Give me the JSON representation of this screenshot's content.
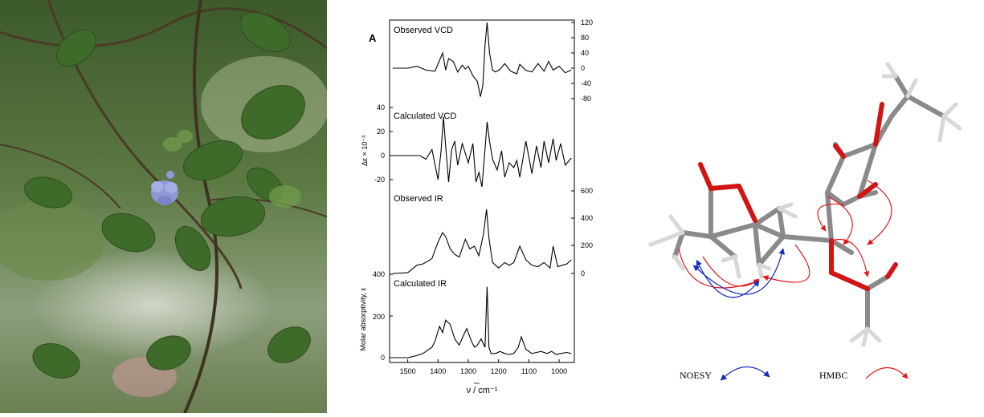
{
  "figure": {
    "panel_label": "A"
  },
  "photo": {
    "subject": "Flowering plant with blue flower and hairy green leaves"
  },
  "spectra": {
    "x_axis": {
      "label": "ν / cm⁻¹",
      "ticks": [
        "1500",
        "1400",
        "1300",
        "1200",
        "1100",
        "1000"
      ]
    },
    "y_axis_left_vcd": {
      "label": "Δε × 10⁻³",
      "ticks": [
        "40",
        "20",
        "0",
        "-20"
      ]
    },
    "y_axis_left_ir": {
      "label": "Molar absorptivity, ε",
      "ticks": [
        "400",
        "200",
        "0"
      ]
    },
    "y_axis_right_vcd": {
      "ticks": [
        "120",
        "80",
        "40",
        "0",
        "-40",
        "-80"
      ]
    },
    "y_axis_right_ir": {
      "ticks": [
        "600",
        "400",
        "200",
        "0"
      ]
    },
    "traces": [
      {
        "label": "Observed VCD"
      },
      {
        "label": "Calculated VCD"
      },
      {
        "label": "Observed IR"
      },
      {
        "label": "Calculated IR"
      }
    ]
  },
  "chart_data": {
    "type": "line",
    "xlabel": "ν / cm⁻¹",
    "xlim": [
      1560,
      950
    ],
    "x_reversed": true,
    "series": [
      {
        "name": "Observed VCD",
        "x": [
          1550,
          1500,
          1470,
          1440,
          1410,
          1385,
          1375,
          1365,
          1350,
          1335,
          1320,
          1310,
          1300,
          1285,
          1270,
          1260,
          1252,
          1245,
          1238,
          1230,
          1220,
          1210,
          1195,
          1180,
          1160,
          1140,
          1130,
          1110,
          1090,
          1070,
          1050,
          1035,
          1020,
          1000,
          980,
          960
        ],
        "y": [
          0,
          0,
          5,
          -5,
          -8,
          40,
          -5,
          25,
          18,
          -10,
          8,
          -2,
          5,
          -20,
          -35,
          -75,
          -45,
          60,
          120,
          40,
          -5,
          -10,
          -3,
          12,
          -8,
          -15,
          10,
          -6,
          -10,
          12,
          -8,
          18,
          -5,
          5,
          -12,
          -5
        ]
      },
      {
        "name": "Calculated VCD",
        "x": [
          1550,
          1500,
          1460,
          1440,
          1420,
          1400,
          1390,
          1382,
          1375,
          1365,
          1355,
          1345,
          1335,
          1320,
          1300,
          1285,
          1275,
          1265,
          1255,
          1245,
          1238,
          1230,
          1220,
          1205,
          1190,
          1180,
          1165,
          1150,
          1140,
          1130,
          1110,
          1090,
          1075,
          1060,
          1050,
          1035,
          1020,
          1010,
          995,
          980,
          960
        ],
        "y": [
          0,
          0,
          0,
          -3,
          5,
          -20,
          4,
          32,
          8,
          -22,
          5,
          12,
          -8,
          10,
          -6,
          10,
          -22,
          -14,
          -26,
          5,
          28,
          12,
          -3,
          -12,
          4,
          -18,
          -6,
          -10,
          -4,
          -18,
          12,
          -15,
          8,
          -10,
          12,
          -6,
          14,
          -4,
          10,
          -8,
          -2
        ]
      },
      {
        "name": "Observed IR",
        "x": [
          1550,
          1500,
          1470,
          1450,
          1430,
          1420,
          1400,
          1385,
          1375,
          1360,
          1345,
          1330,
          1310,
          1295,
          1280,
          1265,
          1250,
          1240,
          1232,
          1220,
          1200,
          1180,
          1165,
          1150,
          1130,
          1110,
          1090,
          1070,
          1050,
          1030,
          1020,
          1005,
          990,
          975,
          960
        ],
        "y": [
          0,
          5,
          60,
          70,
          95,
          110,
          230,
          300,
          270,
          180,
          140,
          120,
          250,
          180,
          200,
          130,
          290,
          470,
          260,
          80,
          40,
          80,
          60,
          80,
          200,
          100,
          60,
          50,
          80,
          40,
          200,
          50,
          60,
          70,
          100
        ]
      },
      {
        "name": "Calculated IR",
        "x": [
          1550,
          1500,
          1470,
          1450,
          1440,
          1420,
          1410,
          1395,
          1385,
          1375,
          1360,
          1345,
          1330,
          1318,
          1305,
          1290,
          1280,
          1270,
          1258,
          1245,
          1238,
          1232,
          1225,
          1210,
          1195,
          1180,
          1165,
          1150,
          1135,
          1125,
          1110,
          1090,
          1075,
          1060,
          1040,
          1025,
          1010,
          995,
          975,
          960
        ],
        "y": [
          0,
          0,
          10,
          20,
          30,
          50,
          80,
          150,
          120,
          180,
          160,
          90,
          60,
          100,
          140,
          80,
          50,
          60,
          90,
          50,
          340,
          50,
          20,
          20,
          30,
          20,
          15,
          20,
          50,
          100,
          40,
          20,
          25,
          30,
          20,
          30,
          15,
          20,
          25,
          20
        ]
      }
    ]
  },
  "structure": {
    "legend": {
      "noesy_label": "NOESY",
      "hmbc_label": "HMBC"
    },
    "colors": {
      "noesy": "#1a2fbf",
      "hmbc": "#e3171b",
      "carbon": "#8a8a8a",
      "oxygen": "#d21414",
      "hydrogen": "#e6e6e6"
    }
  }
}
